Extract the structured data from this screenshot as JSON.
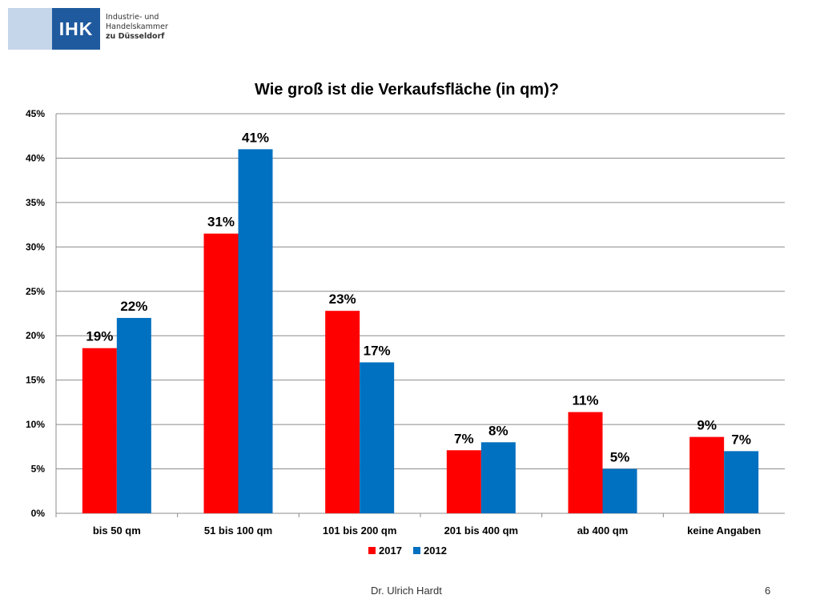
{
  "header": {
    "logo_mark": "IHK",
    "logo_line1": "Industrie- und Handelskammer",
    "logo_line2": "zu Düsseldorf"
  },
  "footer": {
    "author": "Dr. Ulrich Hardt",
    "page_number": "6"
  },
  "colors": {
    "series_2017": "#ff0000",
    "series_2012": "#0070c0",
    "gridline": "#8c8c8c",
    "brand": "#1f5a9e"
  },
  "chart_data": {
    "type": "bar",
    "title": "Wie groß ist die Verkaufsfläche (in qm)?",
    "xlabel": "",
    "ylabel": "",
    "categories": [
      "bis 50 qm",
      "51 bis 100 qm",
      "101 bis 200 qm",
      "201 bis 400 qm",
      "ab 400 qm",
      "keine Angaben"
    ],
    "series": [
      {
        "name": "2017",
        "values": [
          18.6,
          31.5,
          22.8,
          7.1,
          11.4,
          8.6
        ],
        "labels": [
          "19%",
          "31%",
          "23%",
          "7%",
          "11%",
          "9%"
        ]
      },
      {
        "name": "2012",
        "values": [
          22.0,
          41.0,
          17.0,
          8.0,
          5.0,
          7.0
        ],
        "labels": [
          "22%",
          "41%",
          "17%",
          "8%",
          "5%",
          "7%"
        ]
      }
    ],
    "ylim": [
      0,
      45
    ],
    "yticks": [
      "0%",
      "5%",
      "10%",
      "15%",
      "20%",
      "25%",
      "30%",
      "35%",
      "40%",
      "45%"
    ],
    "grid": true,
    "legend_position": "bottom"
  }
}
